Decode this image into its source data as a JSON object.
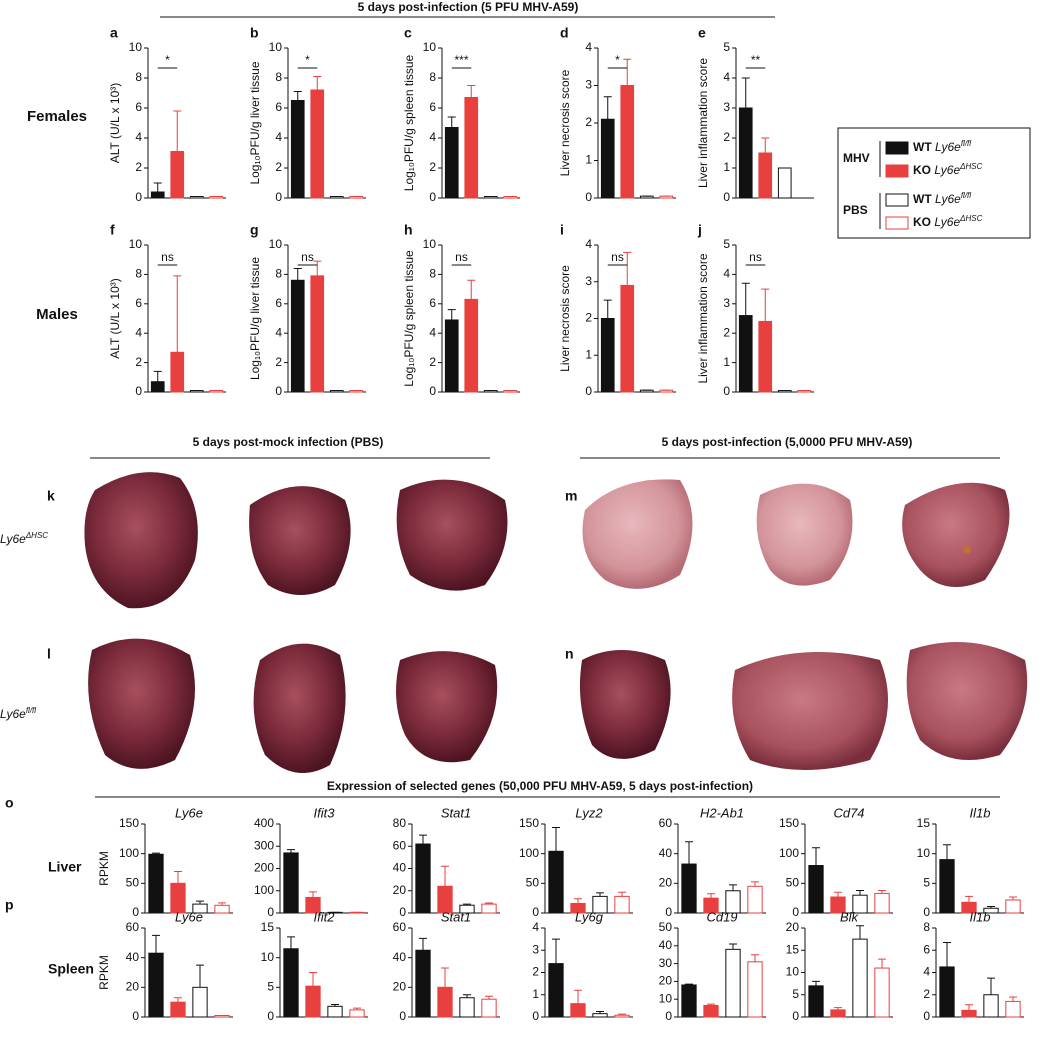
{
  "header": {
    "title": "5 days post-infection (5 PFU MHV-A59)",
    "row_labels": [
      "Females",
      "Males"
    ]
  },
  "legend": {
    "groups": [
      {
        "label": "MHV",
        "entries": [
          {
            "genotype": "WT",
            "gene": "Ly6e",
            "sup": "fl/fl",
            "fill": "#111111",
            "stroke": "#111111"
          },
          {
            "genotype": "KO",
            "gene": "Ly6e",
            "sup": "ΔHSC",
            "fill": "#e8403f",
            "stroke": "#e8403f"
          }
        ]
      },
      {
        "label": "PBS",
        "entries": [
          {
            "genotype": "WT",
            "gene": "Ly6e",
            "sup": "fl/fl",
            "fill": "#ffffff",
            "stroke": "#111111"
          },
          {
            "genotype": "KO",
            "gene": "Ly6e",
            "sup": "ΔHSC",
            "fill": "#ffffff",
            "stroke": "#e8403f"
          }
        ]
      }
    ]
  },
  "photos": {
    "left_title": "5 days post-mock infection (PBS)",
    "right_title": "5 days post-infection (5,0000 PFU MHV-A59)",
    "panels": [
      "k",
      "l",
      "m",
      "n"
    ],
    "row_labels": [
      {
        "gene": "Ly6e",
        "sup": "ΔHSC"
      },
      {
        "gene": "Ly6e",
        "sup": "fl/fl"
      }
    ]
  },
  "genes": {
    "title": "Expression of selected genes (50,000 PFU MHV-A59, 5 days post-infection)",
    "panels": [
      "o",
      "p"
    ],
    "row_labels": [
      "Liver",
      "Spleen"
    ]
  },
  "chart_data": [
    {
      "type": "bar",
      "panel": "a",
      "ylabel": "ALT (U/L x 10³)",
      "values": [
        0.4,
        3.1,
        0.1,
        0.1
      ],
      "errors": [
        0.6,
        2.7,
        0,
        0
      ],
      "ylim": [
        0,
        10
      ],
      "yticks": [
        0,
        2,
        4,
        6,
        8,
        10
      ],
      "significance": "*"
    },
    {
      "type": "bar",
      "panel": "b",
      "ylabel": "Log₁₀PFU/g liver tissue",
      "values": [
        6.5,
        7.2,
        0.1,
        0.1
      ],
      "errors": [
        0.6,
        0.9,
        0,
        0
      ],
      "ylim": [
        0,
        10
      ],
      "yticks": [
        0,
        2,
        4,
        6,
        8,
        10
      ],
      "significance": "*"
    },
    {
      "type": "bar",
      "panel": "c",
      "ylabel": "Log₁₀PFU/g spleen tissue",
      "values": [
        4.7,
        6.7,
        0.1,
        0.1
      ],
      "errors": [
        0.7,
        0.8,
        0,
        0
      ],
      "ylim": [
        0,
        10
      ],
      "yticks": [
        0,
        2,
        4,
        6,
        8,
        10
      ],
      "significance": "***"
    },
    {
      "type": "bar",
      "panel": "d",
      "ylabel": "Liver necrosis score",
      "values": [
        2.1,
        3.0,
        0.05,
        0.05
      ],
      "errors": [
        0.6,
        0.7,
        0,
        0
      ],
      "ylim": [
        0,
        4
      ],
      "yticks": [
        0,
        1,
        2,
        3,
        4
      ],
      "significance": "*"
    },
    {
      "type": "bar",
      "panel": "e",
      "ylabel": "Liver inflammation score",
      "values": [
        3.0,
        1.5,
        1.0,
        null
      ],
      "errors": [
        1.0,
        0.5,
        0,
        null
      ],
      "ylim": [
        0,
        5
      ],
      "yticks": [
        0,
        1,
        2,
        3,
        4,
        5
      ],
      "significance": "**"
    },
    {
      "type": "bar",
      "panel": "f",
      "ylabel": "ALT (U/L x 10³)",
      "values": [
        0.7,
        2.7,
        0.1,
        0.1
      ],
      "errors": [
        0.7,
        5.2,
        0,
        0
      ],
      "ylim": [
        0,
        10
      ],
      "yticks": [
        0,
        2,
        4,
        6,
        8,
        10
      ],
      "significance": "ns"
    },
    {
      "type": "bar",
      "panel": "g",
      "ylabel": "Log₁₀PFU/g liver tissue",
      "values": [
        7.6,
        7.9,
        0.1,
        0.1
      ],
      "errors": [
        0.8,
        1.0,
        0,
        0
      ],
      "ylim": [
        0,
        10
      ],
      "yticks": [
        0,
        2,
        4,
        6,
        8,
        10
      ],
      "significance": "ns"
    },
    {
      "type": "bar",
      "panel": "h",
      "ylabel": "Log₁₀PFU/g spleen tissue",
      "values": [
        4.9,
        6.3,
        0.1,
        0.1
      ],
      "errors": [
        0.7,
        1.3,
        0,
        0
      ],
      "ylim": [
        0,
        10
      ],
      "yticks": [
        0,
        2,
        4,
        6,
        8,
        10
      ],
      "significance": "ns"
    },
    {
      "type": "bar",
      "panel": "i",
      "ylabel": "Liver necrosis score",
      "values": [
        2.0,
        2.9,
        0.05,
        0.05
      ],
      "errors": [
        0.5,
        0.9,
        0,
        0
      ],
      "ylim": [
        0,
        4
      ],
      "yticks": [
        0,
        1,
        2,
        3,
        4
      ],
      "significance": "ns"
    },
    {
      "type": "bar",
      "panel": "j",
      "ylabel": "Liver inflammation score",
      "values": [
        2.6,
        2.4,
        0.05,
        0.05
      ],
      "errors": [
        1.1,
        1.1,
        0,
        0
      ],
      "ylim": [
        0,
        5
      ],
      "yticks": [
        0,
        1,
        2,
        3,
        4,
        5
      ],
      "significance": "ns"
    },
    {
      "type": "bar",
      "title": "Ly6e",
      "ylabel": "RPKM",
      "values": [
        99,
        50,
        15,
        13
      ],
      "errors": [
        2,
        20,
        5,
        4
      ],
      "ylim": [
        0,
        150
      ],
      "yticks": [
        0,
        50,
        100,
        150
      ]
    },
    {
      "type": "bar",
      "title": "Ifit3",
      "values": [
        270,
        70,
        3,
        3
      ],
      "errors": [
        15,
        25,
        0,
        0
      ],
      "ylim": [
        0,
        400
      ],
      "yticks": [
        0,
        100,
        200,
        300,
        400
      ]
    },
    {
      "type": "bar",
      "title": "Stat1",
      "values": [
        62,
        24,
        7,
        8
      ],
      "errors": [
        8,
        18,
        1,
        1
      ],
      "ylim": [
        0,
        80
      ],
      "yticks": [
        0,
        20,
        40,
        60,
        80
      ]
    },
    {
      "type": "bar",
      "title": "Lyz2",
      "values": [
        104,
        16,
        28,
        28
      ],
      "errors": [
        40,
        8,
        6,
        7
      ],
      "ylim": [
        0,
        150
      ],
      "yticks": [
        0,
        50,
        100,
        150
      ]
    },
    {
      "type": "bar",
      "title": "H2-Ab1",
      "values": [
        33,
        10,
        15,
        18
      ],
      "errors": [
        15,
        3,
        4,
        3
      ],
      "ylim": [
        0,
        60
      ],
      "yticks": [
        0,
        20,
        40,
        60
      ]
    },
    {
      "type": "bar",
      "title": "Cd74",
      "values": [
        80,
        27,
        30,
        33
      ],
      "errors": [
        30,
        8,
        8,
        5
      ],
      "ylim": [
        0,
        150
      ],
      "yticks": [
        0,
        50,
        100,
        150
      ]
    },
    {
      "type": "bar",
      "title": "Il1b",
      "values": [
        9,
        1.8,
        0.8,
        2.2
      ],
      "errors": [
        2.5,
        1,
        0.3,
        0.5
      ],
      "ylim": [
        0,
        15
      ],
      "yticks": [
        0,
        5,
        10,
        15
      ]
    },
    {
      "type": "bar",
      "title": "Ly6e",
      "ylabel": "RPKM",
      "values": [
        43,
        10,
        20,
        1
      ],
      "errors": [
        12,
        3,
        15,
        0
      ],
      "ylim": [
        0,
        60
      ],
      "yticks": [
        0,
        20,
        40,
        60
      ]
    },
    {
      "type": "bar",
      "title": "Ifit2",
      "values": [
        11.5,
        5.2,
        1.8,
        1.2
      ],
      "errors": [
        2,
        2.3,
        0.3,
        0.3
      ],
      "ylim": [
        0,
        15
      ],
      "yticks": [
        0,
        5,
        10,
        15
      ]
    },
    {
      "type": "bar",
      "title": "Stat1",
      "values": [
        45,
        20,
        13,
        12
      ],
      "errors": [
        8,
        13,
        2,
        2
      ],
      "ylim": [
        0,
        60
      ],
      "yticks": [
        0,
        20,
        40,
        60
      ]
    },
    {
      "type": "bar",
      "title": "Ly6g",
      "values": [
        2.4,
        0.6,
        0.15,
        0.08
      ],
      "errors": [
        1.1,
        0.6,
        0.1,
        0.05
      ],
      "ylim": [
        0,
        4
      ],
      "yticks": [
        0,
        1,
        2,
        3,
        4
      ]
    },
    {
      "type": "bar",
      "title": "Cd19",
      "values": [
        18,
        6.5,
        38,
        31
      ],
      "errors": [
        0.5,
        0.7,
        3,
        4
      ],
      "ylim": [
        0,
        50
      ],
      "yticks": [
        0,
        10,
        20,
        30,
        40,
        50
      ]
    },
    {
      "type": "bar",
      "title": "Blk",
      "values": [
        7,
        1.6,
        17.5,
        11
      ],
      "errors": [
        1,
        0.5,
        3,
        2
      ],
      "ylim": [
        0,
        20
      ],
      "yticks": [
        0,
        5,
        10,
        15,
        20
      ]
    },
    {
      "type": "bar",
      "title": "Il1b",
      "values": [
        4.5,
        0.6,
        2,
        1.4
      ],
      "errors": [
        2.2,
        0.5,
        1.5,
        0.4
      ],
      "ylim": [
        0,
        8
      ],
      "yticks": [
        0,
        2,
        4,
        6,
        8
      ]
    }
  ]
}
